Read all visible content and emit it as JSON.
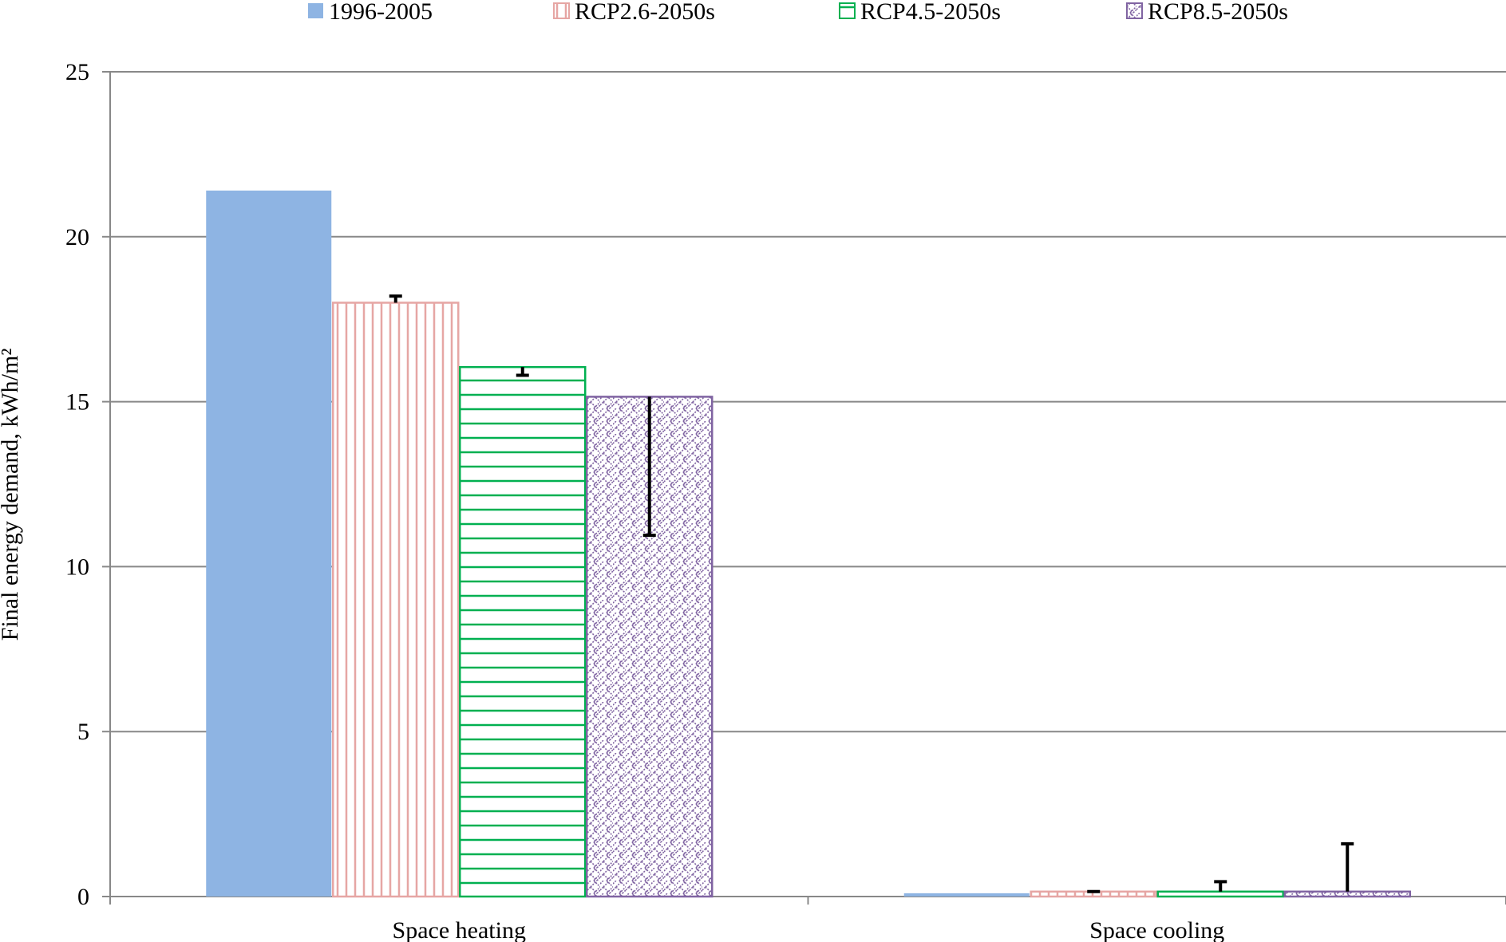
{
  "chart_data": {
    "type": "bar",
    "title": "",
    "xlabel": "",
    "ylabel": "Final energy demand, kWh/m²",
    "ylim": [
      0,
      25
    ],
    "yticks": [
      "0",
      "5",
      "10",
      "15",
      "20",
      "25"
    ],
    "grid": true,
    "legend_position": "top",
    "categories": [
      "Space heating",
      "Space cooling"
    ],
    "series": [
      {
        "name": "1996-2005",
        "values": [
          21.4,
          0.1
        ],
        "error_low": [
          null,
          null
        ],
        "error_high": [
          null,
          null
        ],
        "color": "#8EB4E3",
        "pattern": "solid"
      },
      {
        "name": "RCP2.6-2050s",
        "values": [
          18.0,
          0.15
        ],
        "error_low": [
          null,
          null
        ],
        "error_high": [
          18.2,
          0.15
        ],
        "color": "#E6A6A4",
        "pattern": "vertical"
      },
      {
        "name": "RCP4.5-2050s",
        "values": [
          16.05,
          0.15
        ],
        "error_low": [
          15.8,
          null
        ],
        "error_high": [
          null,
          0.45
        ],
        "color": "#00B050",
        "pattern": "horizontal"
      },
      {
        "name": "RCP8.5-2050s",
        "values": [
          15.15,
          0.15
        ],
        "error_low": [
          10.95,
          null
        ],
        "error_high": [
          null,
          1.6
        ],
        "color": "#8064A2",
        "pattern": "weave"
      }
    ]
  }
}
